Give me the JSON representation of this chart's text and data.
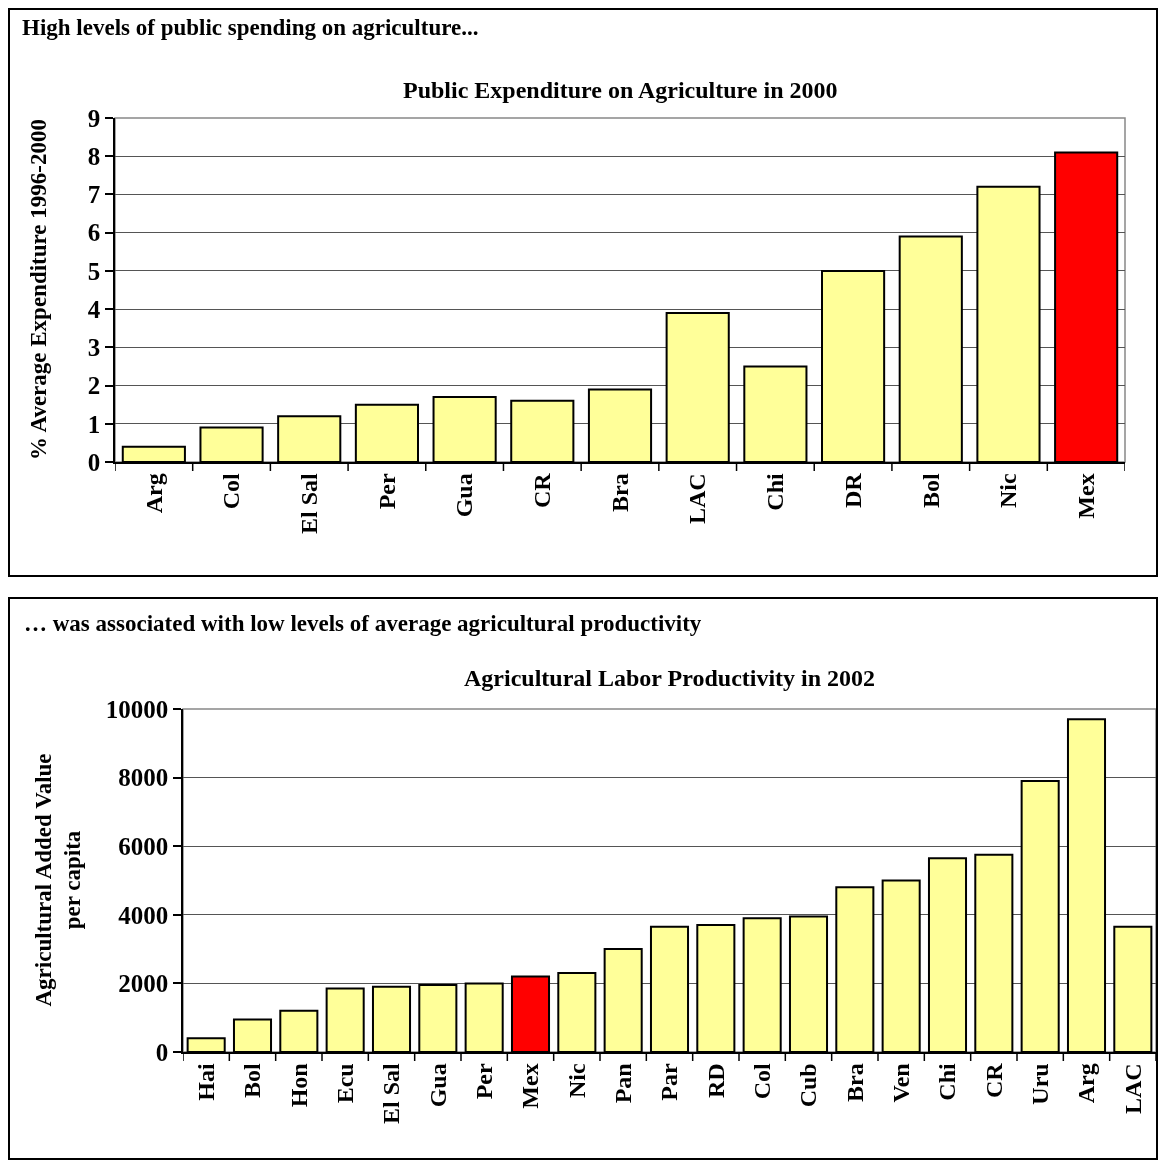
{
  "chart_data": [
    {
      "type": "bar",
      "title": "Public Expenditure on Agriculture in 2000",
      "ylabel": "% Average Expenditure 1996-2000",
      "annotations": [
        "High levels of public spending on agriculture..."
      ],
      "categories": [
        "Arg",
        "Col",
        "El Sal",
        "Per",
        "Gua",
        "CR",
        "Bra",
        "LAC",
        "Chi",
        "DR",
        "Bol",
        "Nic",
        "Mex"
      ],
      "values": [
        0.4,
        0.9,
        1.2,
        1.5,
        1.7,
        1.6,
        1.9,
        3.9,
        2.5,
        5.0,
        5.9,
        7.2,
        8.1
      ],
      "colors": [
        "#ffff99",
        "#ffff99",
        "#ffff99",
        "#ffff99",
        "#ffff99",
        "#ffff99",
        "#ffff99",
        "#ffff99",
        "#ffff99",
        "#ffff99",
        "#ffff99",
        "#ffff99",
        "#ff0000"
      ],
      "ylim": [
        0,
        9
      ],
      "yticks": [
        0,
        1,
        2,
        3,
        4,
        5,
        6,
        7,
        8,
        9
      ],
      "grid": "y"
    },
    {
      "type": "bar",
      "title": "Agricultural Labor Productivity in 2002",
      "ylabel": "Agricultural Added Value per capita",
      "annotations": [
        "… was associated with low levels of average agricultural productivity"
      ],
      "categories": [
        "Hai",
        "Bol",
        "Hon",
        "Ecu",
        "El Sal",
        "Gua",
        "Per",
        "Mex",
        "Nic",
        "Pan",
        "Par",
        "RD",
        "Col",
        "Cub",
        "Bra",
        "Ven",
        "Chi",
        "CR",
        "Uru",
        "Arg",
        "LAC"
      ],
      "values": [
        400,
        950,
        1200,
        1850,
        1900,
        1950,
        2000,
        2200,
        2300,
        3000,
        3650,
        3700,
        3900,
        3950,
        4800,
        5000,
        5650,
        5750,
        7900,
        9700,
        3650
      ],
      "colors": [
        "#ffff99",
        "#ffff99",
        "#ffff99",
        "#ffff99",
        "#ffff99",
        "#ffff99",
        "#ffff99",
        "#ff0000",
        "#ffff99",
        "#ffff99",
        "#ffff99",
        "#ffff99",
        "#ffff99",
        "#ffff99",
        "#ffff99",
        "#ffff99",
        "#ffff99",
        "#ffff99",
        "#ffff99",
        "#ffff99",
        "#ffff99"
      ],
      "ylim": [
        0,
        10000
      ],
      "yticks": [
        0,
        2000,
        4000,
        6000,
        8000,
        10000
      ],
      "grid": "y"
    }
  ]
}
